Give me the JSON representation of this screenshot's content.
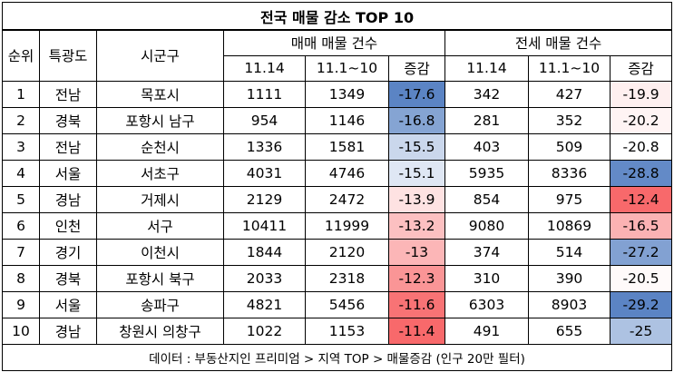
{
  "chart_data": {
    "type": "table",
    "title": "전국 매물 감소 TOP 10",
    "headers": {
      "rank": "순위",
      "region": "특광도",
      "city": "시군구",
      "sale_group": "매매 매물 건수",
      "jeonse_group": "전세 매물 건수",
      "date_current": "11.14",
      "date_range": "11.1~10",
      "change": "증감"
    },
    "rows": [
      {
        "rank": "1",
        "region": "전남",
        "city": "목포시",
        "sale_cur": 1111,
        "sale_prev": 1349,
        "sale_chg": -17.6,
        "jeonse_cur": 342,
        "jeonse_prev": 427,
        "jeonse_chg": -19.9
      },
      {
        "rank": "2",
        "region": "경북",
        "city": "포항시 남구",
        "sale_cur": 954,
        "sale_prev": 1146,
        "sale_chg": -16.8,
        "jeonse_cur": 281,
        "jeonse_prev": 352,
        "jeonse_chg": -20.2
      },
      {
        "rank": "3",
        "region": "전남",
        "city": "순천시",
        "sale_cur": 1336,
        "sale_prev": 1581,
        "sale_chg": -15.5,
        "jeonse_cur": 403,
        "jeonse_prev": 509,
        "jeonse_chg": -20.8
      },
      {
        "rank": "4",
        "region": "서울",
        "city": "서초구",
        "sale_cur": 4031,
        "sale_prev": 4746,
        "sale_chg": -15.1,
        "jeonse_cur": 5935,
        "jeonse_prev": 8336,
        "jeonse_chg": -28.8
      },
      {
        "rank": "5",
        "region": "경남",
        "city": "거제시",
        "sale_cur": 2129,
        "sale_prev": 2472,
        "sale_chg": -13.9,
        "jeonse_cur": 854,
        "jeonse_prev": 975,
        "jeonse_chg": -12.4
      },
      {
        "rank": "6",
        "region": "인천",
        "city": "서구",
        "sale_cur": 10411,
        "sale_prev": 11999,
        "sale_chg": -13.2,
        "jeonse_cur": 9080,
        "jeonse_prev": 10869,
        "jeonse_chg": -16.5
      },
      {
        "rank": "7",
        "region": "경기",
        "city": "이천시",
        "sale_cur": 1844,
        "sale_prev": 2120,
        "sale_chg": -13,
        "jeonse_cur": 374,
        "jeonse_prev": 514,
        "jeonse_chg": -27.2
      },
      {
        "rank": "8",
        "region": "경북",
        "city": "포항시 북구",
        "sale_cur": 2033,
        "sale_prev": 2318,
        "sale_chg": -12.3,
        "jeonse_cur": 310,
        "jeonse_prev": 390,
        "jeonse_chg": -20.5
      },
      {
        "rank": "9",
        "region": "서울",
        "city": "송파구",
        "sale_cur": 4821,
        "sale_prev": 5456,
        "sale_chg": -11.6,
        "jeonse_cur": 6303,
        "jeonse_prev": 8903,
        "jeonse_chg": -29.2
      },
      {
        "rank": "10",
        "region": "경남",
        "city": "창원시 의창구",
        "sale_cur": 1022,
        "sale_prev": 1153,
        "sale_chg": -11.4,
        "jeonse_cur": 491,
        "jeonse_prev": 655,
        "jeonse_chg": -25
      }
    ],
    "colors": {
      "scale_low": "#5b84c4",
      "scale_mid": "#ffffff",
      "scale_high": "#f8696b"
    },
    "footer": "데이터 : 부동산지인 프리미엄 > 지역 TOP > 매물증감 (인구 20만 필터)"
  }
}
